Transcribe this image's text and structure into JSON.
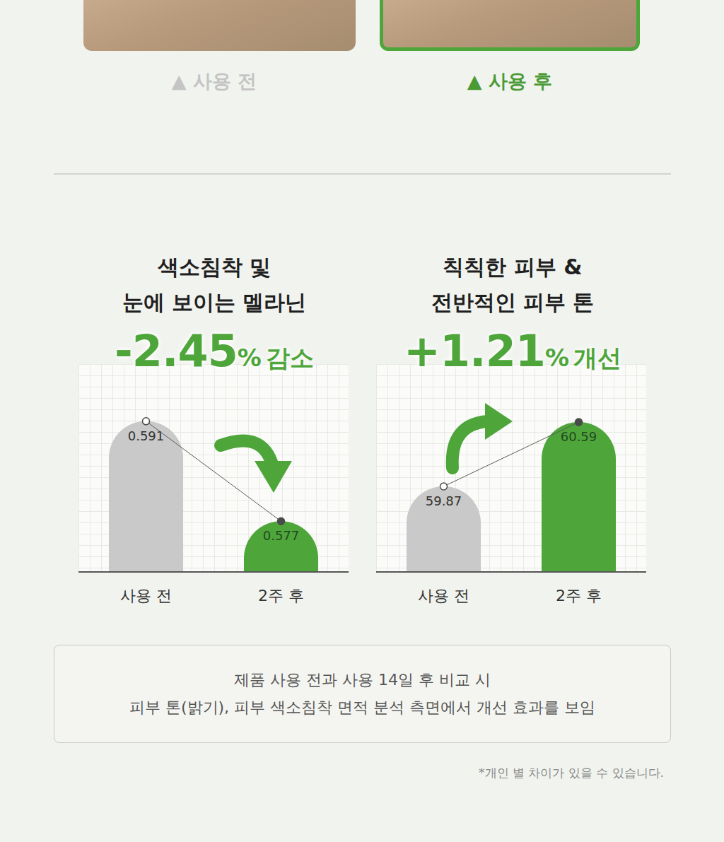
{
  "photos": [
    {
      "label": "▲ 사용 전"
    },
    {
      "label": "▲ 사용 후"
    }
  ],
  "chart_data": [
    {
      "type": "bar",
      "title": "색소침착 및\n눈에 보이는 멜라닌",
      "subtitle": "-2.45% 감소",
      "categories": [
        "사용 전",
        "2주 후"
      ],
      "values": [
        0.591,
        0.577
      ],
      "colors": [
        "#c9c9c9",
        "#4ea63b"
      ],
      "ylim": [
        0.57,
        0.599
      ],
      "grid": true,
      "data_labels": true,
      "tick_labels": "x",
      "marker": "circle",
      "line_style": "solid"
    },
    {
      "type": "bar",
      "title": "칙칙한 피부 &\n전반적인 피부 톤",
      "subtitle": "+1.21% 개선",
      "categories": [
        "사용 전",
        "2주 후"
      ],
      "values": [
        59.87,
        60.59
      ],
      "colors": [
        "#c9c9c9",
        "#4ea63b"
      ],
      "ylim": [
        58.92,
        61.24
      ],
      "grid": true,
      "data_labels": true,
      "tick_labels": "x",
      "marker": "circle",
      "line_style": "solid"
    }
  ],
  "note": {
    "lines": [
      "제품 사용 전과 사용 14일 후 비교 시",
      "피부 톤(밝기), 피부 색소침착 면적 분석 측면에서 개선 효과를 보임"
    ]
  },
  "footnote": "*개인 별 차이가 있을 수 있습니다."
}
